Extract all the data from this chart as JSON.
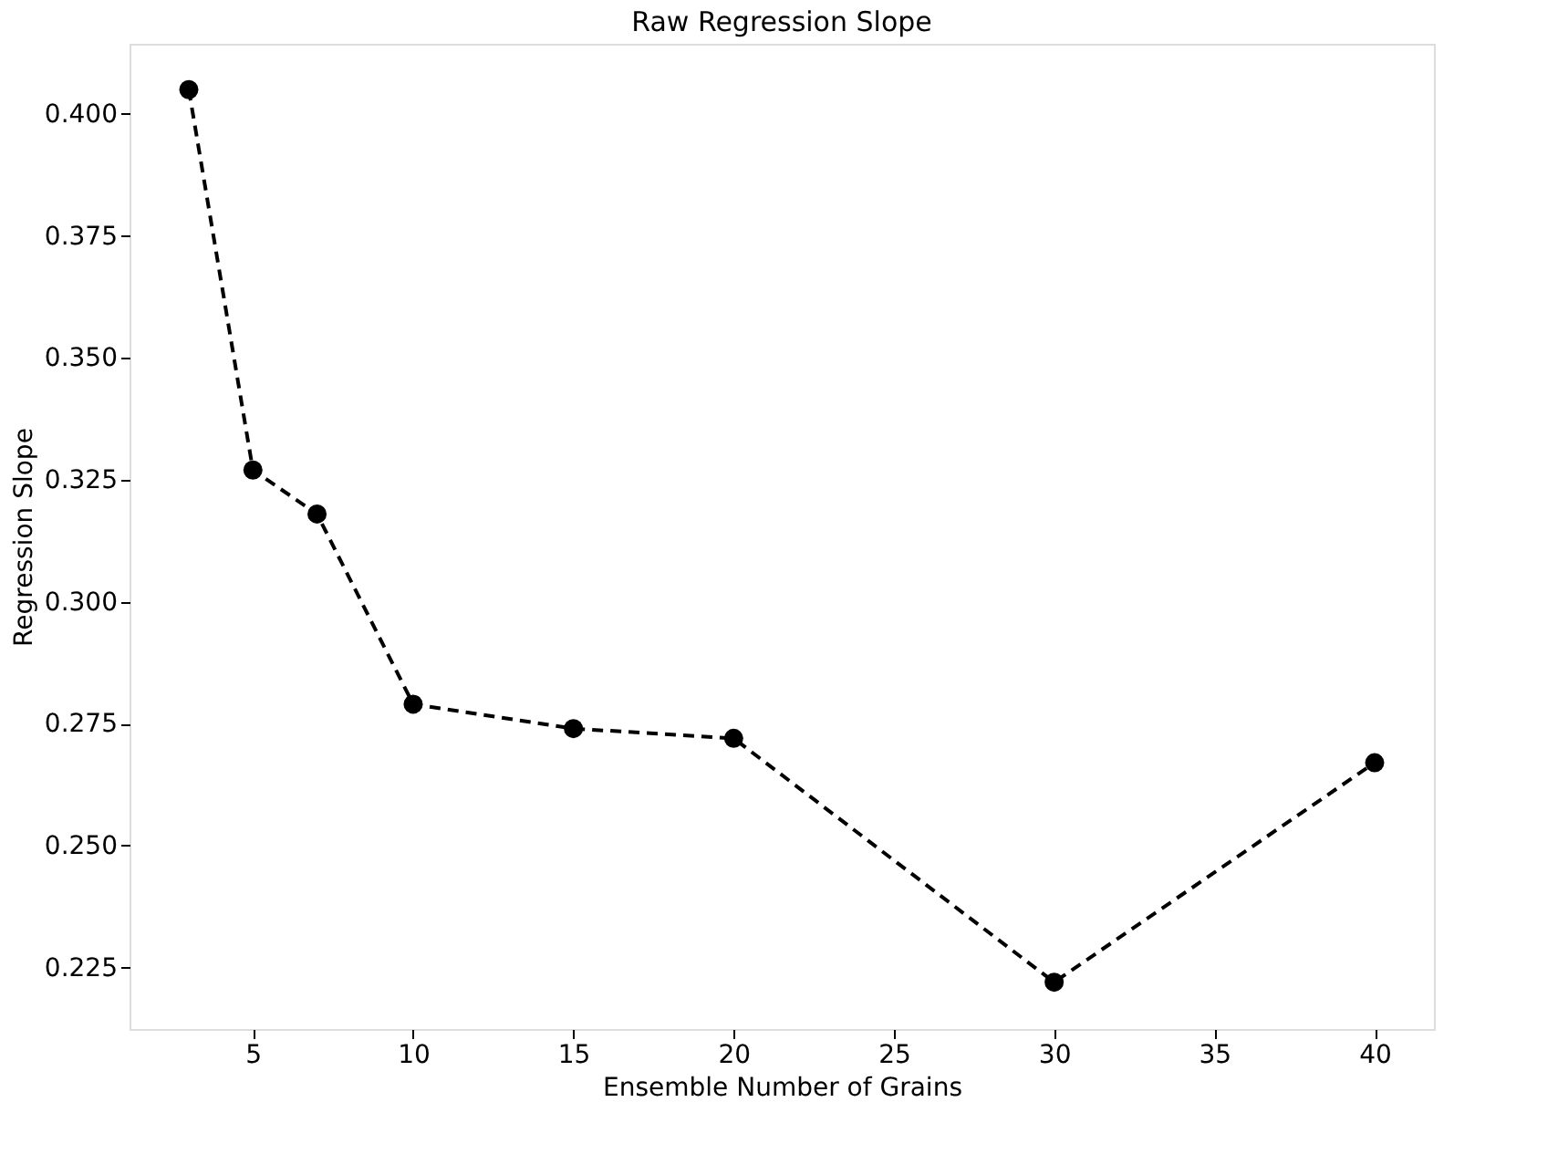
{
  "chart_data": {
    "type": "line",
    "title": "Raw Regression Slope",
    "xlabel": "Ensemble Number of Grains",
    "ylabel": "Regression Slope",
    "x": [
      3,
      5,
      7,
      10,
      15,
      20,
      30,
      40
    ],
    "series": [
      {
        "color": "#000000",
        "values": [
          0.405,
          0.327,
          0.318,
          0.279,
          0.274,
          0.272,
          0.222,
          0.267
        ]
      }
    ],
    "xlim": [
      1.15,
      41.85
    ],
    "xticks": [
      5,
      10,
      15,
      20,
      25,
      30,
      35,
      40
    ],
    "ylim": [
      0.2124,
      0.4144
    ],
    "yticks": [
      {
        "value": 0.225,
        "label": "0.225"
      },
      {
        "value": 0.25,
        "label": "0.250"
      },
      {
        "value": 0.275,
        "label": "0.275"
      },
      {
        "value": 0.3,
        "label": "0.300"
      },
      {
        "value": 0.325,
        "label": "0.325"
      },
      {
        "value": 0.35,
        "label": "0.350"
      },
      {
        "value": 0.375,
        "label": "0.375"
      },
      {
        "value": 0.4,
        "label": "0.400"
      }
    ],
    "marker": "circle",
    "line_style": "dashed",
    "grid": false
  }
}
